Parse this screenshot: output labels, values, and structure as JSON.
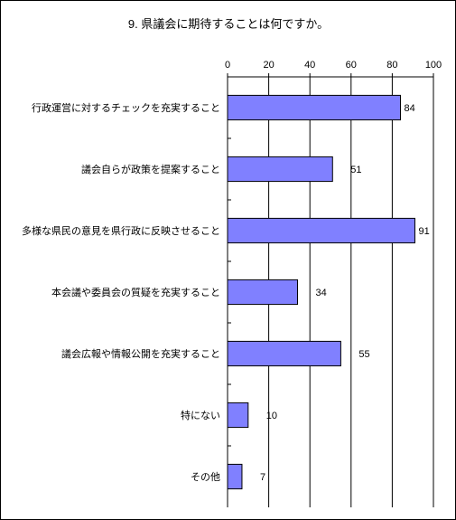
{
  "chart_data": {
    "type": "bar",
    "orientation": "horizontal",
    "title": "9. 県議会に期待することは何ですか。",
    "categories": [
      "行政運営に対するチェックを充実すること",
      "議会自らが政策を提案すること",
      "多様な県民の意見を県行政に反映させること",
      "本会議や委員会の質疑を充実すること",
      "議会広報や情報公開を充実すること",
      "特にない",
      "その他"
    ],
    "values": [
      84,
      51,
      91,
      34,
      55,
      10,
      7
    ],
    "value_labels": [
      "84",
      "51",
      "91",
      "34",
      "55",
      "10",
      "7"
    ],
    "xlim": [
      0,
      100
    ],
    "x_ticks": [
      0,
      20,
      40,
      60,
      80,
      100
    ],
    "x_tick_labels": [
      "0",
      "20",
      "40",
      "60",
      "80",
      "100"
    ],
    "x_axis_position": "top",
    "grid": true,
    "legend": "none",
    "bar_color": "#8080ff",
    "bar_edge_color": "#000000"
  }
}
